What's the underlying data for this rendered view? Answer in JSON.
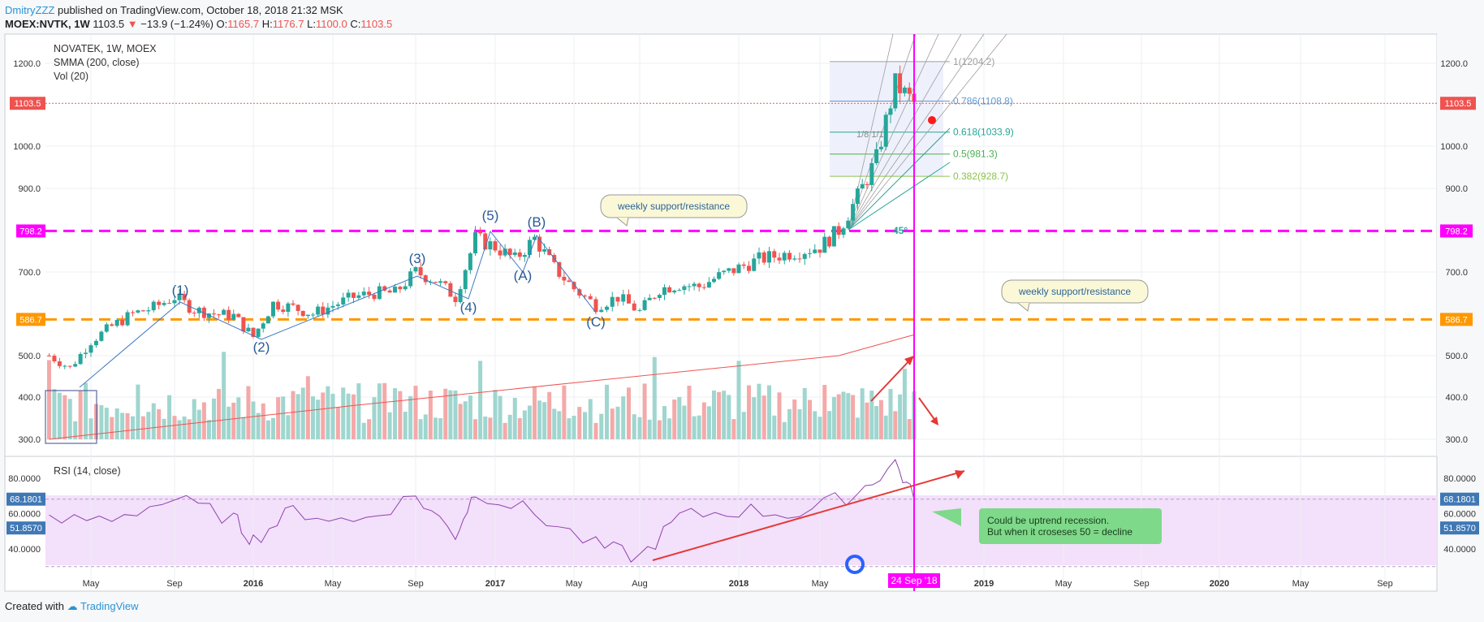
{
  "header": {
    "author": "DmitryZZZ",
    "published": " published on TradingView.com, October 18, 2018 21:32 MSK",
    "symbol": "MOEX:NVTK, 1W",
    "last": "1103.5",
    "change": "−13.9 (−1.24%)",
    "o_label": "O:",
    "o": "1165.7",
    "h_label": "H:",
    "h": "1176.7",
    "l_label": "L:",
    "l": "1100.0",
    "c_label": "C:",
    "c": "1103.5"
  },
  "legend": {
    "title": "NOVATEK, 1W, MOEX",
    "smma": "SMMA (200, close)",
    "vol": "Vol (20)",
    "rsi": "RSI (14, close)"
  },
  "price_axis": {
    "ticks": [
      "1200.0",
      "1000.0",
      "900.0",
      "700.0",
      "500.0",
      "400.0",
      "300.0"
    ],
    "badges": {
      "last": "1103.5",
      "magenta": "798.2",
      "orange": "586.7"
    }
  },
  "rsi_axis": {
    "ticks": [
      "80.0000",
      "60.0000",
      "40.0000"
    ],
    "badges": {
      "upper": "68.1801",
      "lower": "51.8570"
    }
  },
  "time_axis": {
    "labels": [
      "May",
      "Sep",
      "2016",
      "May",
      "Sep",
      "2017",
      "May",
      "Aug",
      "2018",
      "May",
      "2019",
      "May",
      "Sep",
      "2020",
      "May",
      "Sep"
    ],
    "cursor": "24 Sep '18"
  },
  "annotations": {
    "waves": [
      "(1)",
      "(2)",
      "(3)",
      "(4)",
      "(5)",
      "(A)",
      "(B)",
      "(C)"
    ],
    "callout_1": "weekly support/resistance",
    "callout_2": "weekly support/resistance",
    "callout_3_line1": "Could be uptrend recession.",
    "callout_3_line2": "But when it croseses 50 = decline",
    "angle": "45°",
    "gann_ratio": "1/8 1/1"
  },
  "fib": [
    {
      "label": "1(1204.2)",
      "price": 1204.2,
      "color": "#9e9e9e"
    },
    {
      "label": "0.786(1108.8)",
      "price": 1108.8,
      "color": "#5b9bd5"
    },
    {
      "label": "0.618(1033.9)",
      "price": 1033.9,
      "color": "#26a69a"
    },
    {
      "label": "0.5(981.3)",
      "price": 981.3,
      "color": "#4caf50"
    },
    {
      "label": "0.382(928.7)",
      "price": 928.7,
      "color": "#8bc34a"
    }
  ],
  "footer": {
    "created": "Created with",
    "brand": "TradingView"
  },
  "colors": {
    "up": "#26a69a",
    "down": "#ef5350",
    "magenta": "#ff00ff",
    "orange": "#ff9800",
    "smma": "#ef5350",
    "rsi": "#8e44ad"
  },
  "chart_data": {
    "type": "candlestick",
    "symbol": "NOVATEK, 1W, MOEX",
    "y_axis": {
      "label_ticks": [
        1200,
        1000,
        900,
        700,
        500,
        400,
        300
      ]
    },
    "horizontal_levels": [
      1103.5,
      798.2,
      586.7
    ],
    "price_path": [
      {
        "x": "2015-03",
        "y": 500
      },
      {
        "x": "2015-04",
        "y": 470
      },
      {
        "x": "2015-05",
        "y": 535
      },
      {
        "x": "2015-06",
        "y": 570
      },
      {
        "x": "2015-07",
        "y": 600
      },
      {
        "x": "2015-08",
        "y": 615
      },
      {
        "x": "2015-09",
        "y": 640
      },
      {
        "x": "2015-10",
        "y": 610
      },
      {
        "x": "2015-11",
        "y": 600
      },
      {
        "x": "2015-12",
        "y": 595
      },
      {
        "x": "2016-01",
        "y": 545
      },
      {
        "x": "2016-02",
        "y": 625
      },
      {
        "x": "2016-03",
        "y": 615
      },
      {
        "x": "2016-04",
        "y": 600
      },
      {
        "x": "2016-05",
        "y": 620
      },
      {
        "x": "2016-06",
        "y": 640
      },
      {
        "x": "2016-07",
        "y": 650
      },
      {
        "x": "2016-08",
        "y": 650
      },
      {
        "x": "2016-09",
        "y": 700
      },
      {
        "x": "2016-10",
        "y": 680
      },
      {
        "x": "2016-11",
        "y": 640
      },
      {
        "x": "2016-12",
        "y": 780
      },
      {
        "x": "2017-01",
        "y": 760
      },
      {
        "x": "2017-02",
        "y": 730
      },
      {
        "x": "2017-03",
        "y": 780
      },
      {
        "x": "2017-04",
        "y": 710
      },
      {
        "x": "2017-05",
        "y": 660
      },
      {
        "x": "2017-06",
        "y": 620
      },
      {
        "x": "2017-07",
        "y": 640
      },
      {
        "x": "2017-08",
        "y": 605
      },
      {
        "x": "2017-09",
        "y": 660
      },
      {
        "x": "2017-10",
        "y": 670
      },
      {
        "x": "2017-11",
        "y": 665
      },
      {
        "x": "2017-12",
        "y": 690
      },
      {
        "x": "2018-01",
        "y": 710
      },
      {
        "x": "2018-02",
        "y": 730
      },
      {
        "x": "2018-03",
        "y": 740
      },
      {
        "x": "2018-04",
        "y": 750
      },
      {
        "x": "2018-05",
        "y": 760
      },
      {
        "x": "2018-06",
        "y": 800
      },
      {
        "x": "2018-07",
        "y": 880
      },
      {
        "x": "2018-08",
        "y": 970
      },
      {
        "x": "2018-09",
        "y": 1150
      },
      {
        "x": "2018-10",
        "y": 1103.5
      }
    ],
    "smma_200": [
      {
        "x": "2015-03",
        "y": 300
      },
      {
        "x": "2016-06",
        "y": 380
      },
      {
        "x": "2017-06",
        "y": 440
      },
      {
        "x": "2018-06",
        "y": 500
      },
      {
        "x": "2018-10",
        "y": 550
      }
    ],
    "volume_bars": 136,
    "rsi": {
      "levels": [
        68.1801,
        51.857
      ],
      "y_axis_ticks": [
        80,
        60,
        40
      ],
      "values": [
        {
          "x": "2015-03",
          "y": 55
        },
        {
          "x": "2015-06",
          "y": 58
        },
        {
          "x": "2015-09",
          "y": 68
        },
        {
          "x": "2015-12",
          "y": 57
        },
        {
          "x": "2016-01",
          "y": 45
        },
        {
          "x": "2016-03",
          "y": 62
        },
        {
          "x": "2016-06",
          "y": 55
        },
        {
          "x": "2016-09",
          "y": 70
        },
        {
          "x": "2016-11",
          "y": 48
        },
        {
          "x": "2016-12",
          "y": 73
        },
        {
          "x": "2017-03",
          "y": 60
        },
        {
          "x": "2017-06",
          "y": 42
        },
        {
          "x": "2017-08",
          "y": 35
        },
        {
          "x": "2017-10",
          "y": 58
        },
        {
          "x": "2018-01",
          "y": 62
        },
        {
          "x": "2018-04",
          "y": 60
        },
        {
          "x": "2018-07",
          "y": 72
        },
        {
          "x": "2018-09",
          "y": 89
        },
        {
          "x": "2018-10",
          "y": 68
        }
      ]
    }
  }
}
